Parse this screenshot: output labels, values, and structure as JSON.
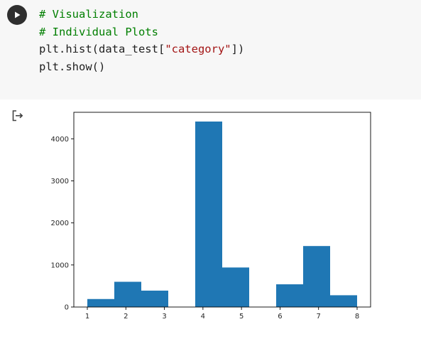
{
  "cell": {
    "run_icon": "play-icon",
    "code_lines": [
      [
        {
          "t": "# Visualization",
          "c": "cm"
        }
      ],
      [
        {
          "t": "# Individual Plots",
          "c": "cm"
        }
      ],
      [
        {
          "t": "plt.hist(data_test[",
          "c": ""
        },
        {
          "t": "\"category\"",
          "c": "str"
        },
        {
          "t": "])",
          "c": ""
        }
      ],
      [
        {
          "t": "plt.show()",
          "c": ""
        }
      ]
    ]
  },
  "output": {
    "icon": "output-arrow-icon"
  },
  "colors": {
    "bar": "#1f77b4",
    "comment": "#007f00",
    "string": "#a31515",
    "cell_bg": "#f7f7f7"
  },
  "chart_data": {
    "type": "bar",
    "title": "",
    "xlabel": "",
    "ylabel": "",
    "bins": [
      {
        "start": 1.0,
        "end": 1.7,
        "value": 190
      },
      {
        "start": 1.7,
        "end": 2.4,
        "value": 600
      },
      {
        "start": 2.4,
        "end": 3.1,
        "value": 390
      },
      {
        "start": 3.1,
        "end": 3.8,
        "value": 0
      },
      {
        "start": 3.8,
        "end": 4.5,
        "value": 4410
      },
      {
        "start": 4.5,
        "end": 5.2,
        "value": 940
      },
      {
        "start": 5.2,
        "end": 5.9,
        "value": 0
      },
      {
        "start": 5.9,
        "end": 6.6,
        "value": 540
      },
      {
        "start": 6.6,
        "end": 7.3,
        "value": 1450
      },
      {
        "start": 7.3,
        "end": 8.0,
        "value": 280
      }
    ],
    "xlim": [
      0.65,
      8.35
    ],
    "ylim": [
      0,
      4630
    ],
    "xticks": [
      1,
      2,
      3,
      4,
      5,
      6,
      7,
      8
    ],
    "xtick_labels": [
      "1",
      "2",
      "3",
      "4",
      "5",
      "6",
      "7",
      "8"
    ],
    "yticks": [
      0,
      1000,
      2000,
      3000,
      4000
    ],
    "ytick_labels": [
      "0",
      "1000",
      "2000",
      "3000",
      "4000"
    ],
    "grid": false,
    "legend": "none"
  }
}
